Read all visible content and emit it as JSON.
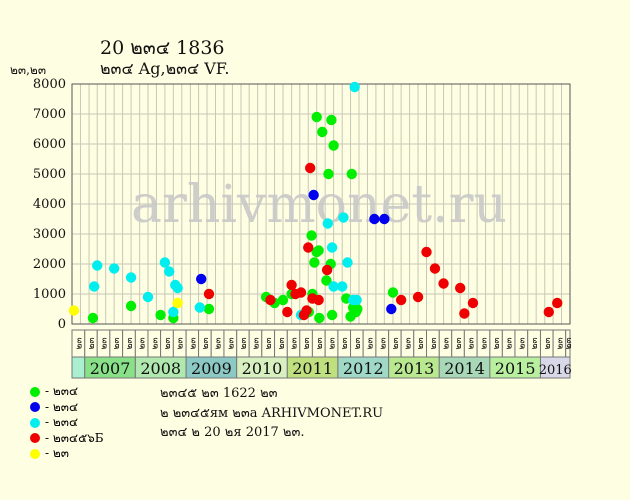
{
  "title": "20 ๒๓๔ 1836",
  "subtitle": "๒๓๔ Ag,๒๓๔ VF.",
  "ylabel": "๒๓,๒๓",
  "watermark": "arhivmonet.ru",
  "legend": [
    {
      "label": "- ๒๓๔",
      "color": "#00ee00"
    },
    {
      "label": "- ๒๓๔",
      "color": "#0000ee"
    },
    {
      "label": "- ๒๓๔",
      "color": "#00eeee"
    },
    {
      "label": "- ๒๓๔๕๖Б",
      "color": "#ee0000"
    },
    {
      "label": "- ๒๓",
      "color": "#ffff00"
    }
  ],
  "notes": [
    "๒๓๔๕ ๒๓ 1622 ๒๓",
    "๒ ๒๓๔๕ям ๒๓a ARHIVMONET.RU",
    "๒๓๔ ๒ 20 ๒я 2017 ๒๓."
  ],
  "chart_data": {
    "type": "scatter",
    "ylim": [
      0,
      8000
    ],
    "yticks": [
      0,
      1000,
      2000,
      3000,
      4000,
      5000,
      6000,
      7000,
      8000
    ],
    "grid": true,
    "x_start": "2006-10-01",
    "x_end": "2016-08-01",
    "quarter_labels": [
      "๒๓",
      "๒๓",
      "๒๓",
      "๒๓",
      "๒๓",
      "๒๓",
      "๒๓",
      "๒๓",
      "๒๓",
      "๒๓",
      "๒๓",
      "๒๓",
      "๒๓",
      "๒๓",
      "๒๓",
      "๒๓",
      "๒๓",
      "๒๓",
      "๒๓",
      "๒๓",
      "๒๓",
      "๒๓",
      "๒๓",
      "๒๓",
      "๒๓",
      "๒๓",
      "๒๓",
      "๒๓",
      "๒๓",
      "๒๓",
      "๒๓",
      "๒๓",
      "๒๓",
      "๒๓",
      "๒๓",
      "๒๓",
      "๒๓",
      "๒๓",
      "๒๓",
      "๒๓"
    ],
    "years": [
      {
        "label": "",
        "start": "2006-10-01",
        "end": "2007-01-01",
        "color": "#aaf0d0"
      },
      {
        "label": "2007",
        "start": "2007-01-01",
        "end": "2008-01-01",
        "color": "#88e088"
      },
      {
        "label": "2008",
        "start": "2008-01-01",
        "end": "2009-01-01",
        "color": "#b0e8b0"
      },
      {
        "label": "2009",
        "start": "2009-01-01",
        "end": "2010-01-01",
        "color": "#8cc8c4"
      },
      {
        "label": "2010",
        "start": "2010-01-01",
        "end": "2011-01-01",
        "color": "#d8f0c0"
      },
      {
        "label": "2011",
        "start": "2011-01-01",
        "end": "2012-01-01",
        "color": "#c0e080"
      },
      {
        "label": "2012",
        "start": "2012-01-01",
        "end": "2013-01-01",
        "color": "#a0d8c8"
      },
      {
        "label": "2013",
        "start": "2013-01-01",
        "end": "2014-01-01",
        "color": "#b8e890"
      },
      {
        "label": "2014",
        "start": "2014-01-01",
        "end": "2015-01-01",
        "color": "#a8d8b8"
      },
      {
        "label": "2015",
        "start": "2015-01-01",
        "end": "2016-01-01",
        "color": "#b8f0a0"
      },
      {
        "label": "2016",
        "start": "2016-01-01",
        "end": "2016-08-01",
        "color": "#d8d8e8"
      }
    ],
    "series": [
      {
        "color": "#00ee00",
        "points": [
          [
            "2007-03-01",
            200
          ],
          [
            "2007-12-01",
            600
          ],
          [
            "2008-07-01",
            300
          ],
          [
            "2008-10-01",
            200
          ],
          [
            "2009-06-15",
            500
          ],
          [
            "2010-08-01",
            900
          ],
          [
            "2010-10-01",
            700
          ],
          [
            "2010-12-01",
            800
          ],
          [
            "2011-02-01",
            1000
          ],
          [
            "2011-05-10",
            350
          ],
          [
            "2011-06-05",
            400
          ],
          [
            "2011-06-25",
            2950
          ],
          [
            "2011-07-01",
            1000
          ],
          [
            "2011-07-15",
            2050
          ],
          [
            "2011-08-01",
            2400
          ],
          [
            "2011-08-01",
            6900
          ],
          [
            "2011-08-15",
            2450
          ],
          [
            "2011-08-20",
            200
          ],
          [
            "2011-09-10",
            6400
          ],
          [
            "2011-10-10",
            1450
          ],
          [
            "2011-10-25",
            5000
          ],
          [
            "2011-11-10",
            2000
          ],
          [
            "2011-11-15",
            6800
          ],
          [
            "2011-11-20",
            300
          ],
          [
            "2011-12-01",
            5950
          ],
          [
            "2012-03-01",
            850
          ],
          [
            "2012-04-01",
            250
          ],
          [
            "2012-04-10",
            5000
          ],
          [
            "2012-04-20",
            550
          ],
          [
            "2012-05-10",
            400
          ],
          [
            "2012-05-20",
            500
          ],
          [
            "2013-02-01",
            1050
          ]
        ]
      },
      {
        "color": "#0000ee",
        "points": [
          [
            "2009-04-20",
            1500
          ],
          [
            "2011-07-10",
            4300
          ],
          [
            "2012-09-20",
            3500
          ],
          [
            "2012-12-01",
            3500
          ],
          [
            "2013-01-20",
            500
          ]
        ]
      },
      {
        "color": "#00eeee",
        "points": [
          [
            "2007-03-10",
            1250
          ],
          [
            "2007-04-01",
            1950
          ],
          [
            "2007-08-01",
            1850
          ],
          [
            "2007-12-01",
            1550
          ],
          [
            "2008-04-01",
            900
          ],
          [
            "2008-08-01",
            2050
          ],
          [
            "2008-09-01",
            1750
          ],
          [
            "2008-10-01",
            400
          ],
          [
            "2008-10-15",
            1300
          ],
          [
            "2008-11-01",
            1200
          ],
          [
            "2009-04-10",
            550
          ],
          [
            "2011-04-10",
            300
          ],
          [
            "2011-10-20",
            3350
          ],
          [
            "2011-11-20",
            2550
          ],
          [
            "2011-12-01",
            1250
          ],
          [
            "2012-02-01",
            1250
          ],
          [
            "2012-02-10",
            3550
          ],
          [
            "2012-03-10",
            2050
          ],
          [
            "2012-04-20",
            800
          ],
          [
            "2012-05-15",
            800
          ],
          [
            "2012-05-01",
            7900
          ]
        ]
      },
      {
        "color": "#ee0000",
        "points": [
          [
            "2009-06-15",
            1000
          ],
          [
            "2010-09-01",
            800
          ],
          [
            "2011-01-01",
            400
          ],
          [
            "2011-02-01",
            1300
          ],
          [
            "2011-03-01",
            1000
          ],
          [
            "2011-04-10",
            1050
          ],
          [
            "2011-05-01",
            300
          ],
          [
            "2011-05-20",
            450
          ],
          [
            "2011-06-01",
            2550
          ],
          [
            "2011-06-15",
            5200
          ],
          [
            "2011-07-01",
            850
          ],
          [
            "2011-08-15",
            800
          ],
          [
            "2011-10-15",
            1800
          ],
          [
            "2013-04-01",
            800
          ],
          [
            "2013-08-01",
            900
          ],
          [
            "2013-10-01",
            2400
          ],
          [
            "2013-12-01",
            1850
          ],
          [
            "2014-02-01",
            1350
          ],
          [
            "2014-06-01",
            1200
          ],
          [
            "2014-07-01",
            350
          ],
          [
            "2014-09-01",
            700
          ],
          [
            "2016-03-01",
            400
          ],
          [
            "2016-05-01",
            700
          ]
        ]
      },
      {
        "color": "#ffff00",
        "points": [
          [
            "2006-10-15",
            450
          ],
          [
            "2008-11-01",
            700
          ]
        ]
      }
    ]
  }
}
